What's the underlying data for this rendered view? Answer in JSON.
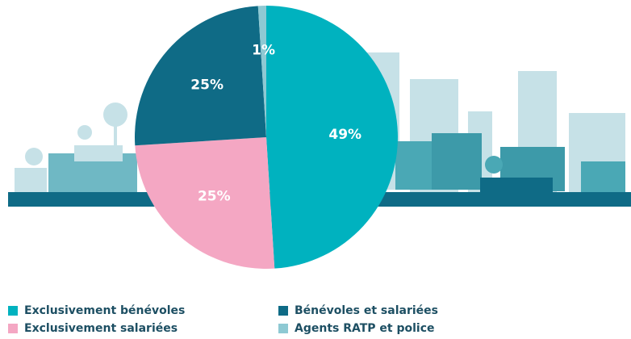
{
  "chart_data": {
    "type": "pie",
    "categories": [
      "Exclusivement bénévoles",
      "Exclusivement salariées",
      "Bénévoles et salariées",
      "Agents RATP et police"
    ],
    "values": [
      49,
      25,
      25,
      1
    ],
    "value_labels": [
      "49%",
      "25%",
      "25%",
      "1%"
    ],
    "colors": [
      "#00b2bf",
      "#f4a7c3",
      "#0f6b86",
      "#8ec9d3"
    ]
  }
}
